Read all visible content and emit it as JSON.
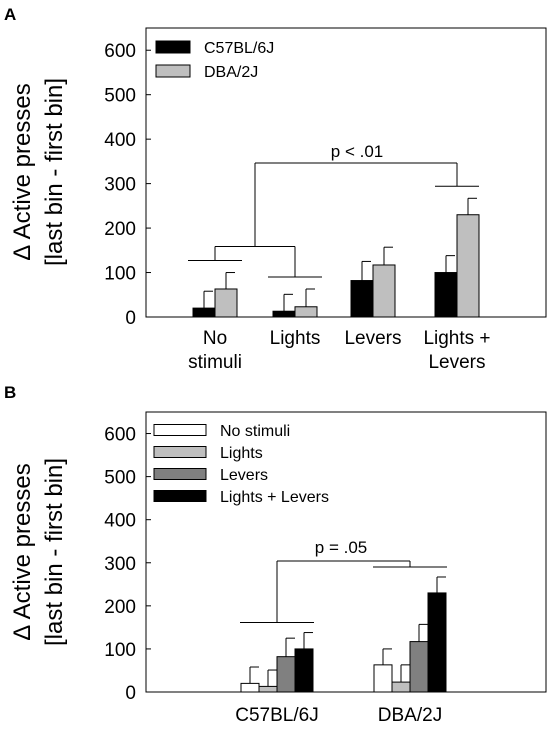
{
  "chart_data": [
    {
      "panel": "A",
      "type": "bar",
      "ylabel_line1": "Δ Active presses",
      "ylabel_line2": "[last bin - first bin]",
      "ylim": [
        0,
        650
      ],
      "yticks": [
        0,
        100,
        200,
        300,
        400,
        500,
        600
      ],
      "categories": [
        [
          "No",
          "stimuli"
        ],
        [
          "Lights"
        ],
        [
          "Levers"
        ],
        [
          "Lights +",
          "Levers"
        ]
      ],
      "legend_position": "top-left",
      "series": [
        {
          "name": "C57BL/6J",
          "color": "#000000",
          "values": [
            20,
            13,
            82,
            100
          ],
          "errors": [
            38,
            38,
            43,
            38
          ]
        },
        {
          "name": "DBA/2J",
          "color": "#bfbfbf",
          "values": [
            63,
            23,
            117,
            230
          ],
          "errors": [
            37,
            40,
            40,
            37
          ]
        }
      ],
      "annotation": "p < .01"
    },
    {
      "panel": "B",
      "type": "bar",
      "ylabel_line1": "Δ Active presses",
      "ylabel_line2": "[last bin - first bin]",
      "ylim": [
        0,
        650
      ],
      "yticks": [
        0,
        100,
        200,
        300,
        400,
        500,
        600
      ],
      "categories": [
        "C57BL/6J",
        "DBA/2J"
      ],
      "legend_position": "top-left",
      "series": [
        {
          "name": "No stimuli",
          "color": "#ffffff",
          "values": [
            20,
            63
          ],
          "errors": [
            38,
            37
          ]
        },
        {
          "name": "Lights",
          "color": "#bfbfbf",
          "values": [
            13,
            23
          ],
          "errors": [
            38,
            40
          ]
        },
        {
          "name": "Levers",
          "color": "#808080",
          "values": [
            82,
            117
          ],
          "errors": [
            43,
            40
          ]
        },
        {
          "name": "Lights + Levers",
          "color": "#000000",
          "values": [
            100,
            230
          ],
          "errors": [
            38,
            37
          ]
        }
      ],
      "annotation": "p = .05"
    }
  ]
}
